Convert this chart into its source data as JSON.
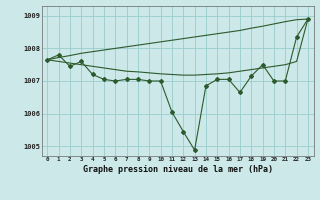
{
  "title": "Graphe pression niveau de la mer (hPa)",
  "background_color": "#cce8e8",
  "grid_color": "#99cccc",
  "line_color": "#2d5a2d",
  "x_labels": [
    "0",
    "1",
    "2",
    "3",
    "4",
    "5",
    "6",
    "7",
    "8",
    "9",
    "10",
    "11",
    "12",
    "13",
    "14",
    "15",
    "16",
    "17",
    "18",
    "19",
    "20",
    "21",
    "22",
    "23"
  ],
  "series_jagged": [
    1007.65,
    1007.8,
    1007.45,
    1007.6,
    1007.2,
    1007.05,
    1007.0,
    1007.05,
    1007.05,
    1007.0,
    1007.0,
    1006.05,
    1005.45,
    1004.88,
    1006.85,
    1007.05,
    1007.05,
    1006.65,
    1007.15,
    1007.5,
    1007.0,
    1007.0,
    1008.35,
    1008.9
  ],
  "series_upper": [
    1007.65,
    1007.72,
    1007.78,
    1007.85,
    1007.9,
    1007.95,
    1008.0,
    1008.05,
    1008.1,
    1008.15,
    1008.2,
    1008.25,
    1008.3,
    1008.35,
    1008.4,
    1008.45,
    1008.5,
    1008.55,
    1008.62,
    1008.68,
    1008.75,
    1008.82,
    1008.88,
    1008.9
  ],
  "series_lower": [
    1007.65,
    1007.6,
    1007.55,
    1007.5,
    1007.45,
    1007.4,
    1007.35,
    1007.3,
    1007.28,
    1007.25,
    1007.22,
    1007.2,
    1007.18,
    1007.18,
    1007.2,
    1007.22,
    1007.25,
    1007.3,
    1007.35,
    1007.4,
    1007.45,
    1007.5,
    1007.6,
    1008.9
  ],
  "ylim": [
    1004.7,
    1009.3
  ],
  "yticks": [
    1005,
    1006,
    1007,
    1008,
    1009
  ]
}
